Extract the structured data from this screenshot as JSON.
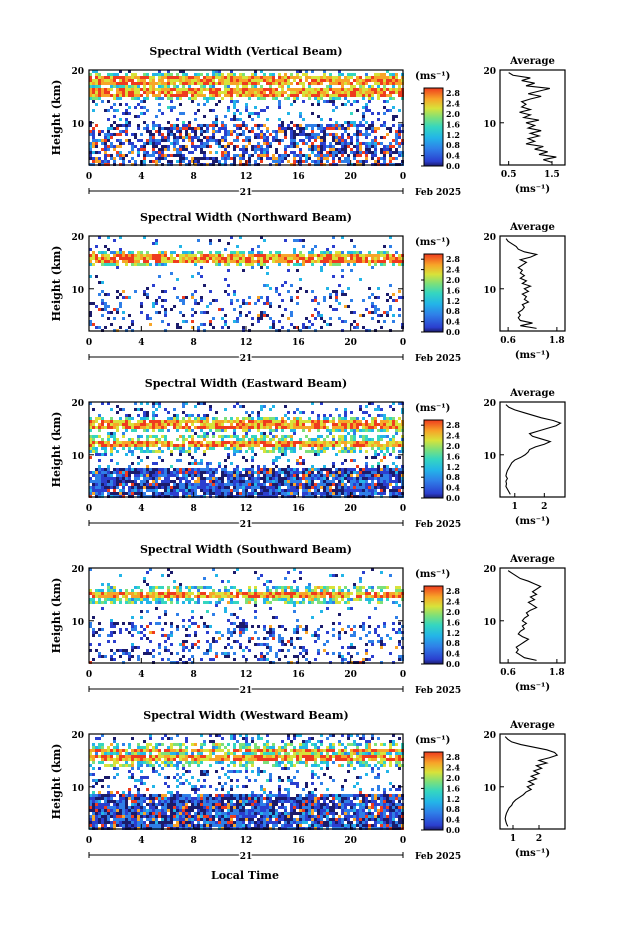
{
  "chart_data": {
    "type": "heatmap",
    "date_label": "Feb 2025",
    "day_label": "21",
    "xlabel": "Local Time",
    "ylabel": "Height (km)",
    "x_ticks": [
      "0",
      "4",
      "8",
      "12",
      "16",
      "20",
      "0"
    ],
    "xlim": [
      0,
      24
    ],
    "y_ticks": [
      "20",
      "10"
    ],
    "ylim": [
      2,
      20
    ],
    "colorbar": {
      "unit": "(ms⁻¹)",
      "ticks": [
        "2.8",
        "2.4",
        "2.0",
        "1.6",
        "1.2",
        "0.8",
        "0.4",
        "0.0"
      ],
      "range": [
        0.0,
        3.0
      ],
      "colors": [
        "#1b1b6b",
        "#2b3fcf",
        "#2f7fe8",
        "#23b5e8",
        "#35d6c0",
        "#7de07a",
        "#d8e23a",
        "#f7a528",
        "#ef3b1e"
      ]
    },
    "panels": [
      {
        "title": "Spectral Width (Vertical Beam)",
        "average": {
          "title": "Average",
          "xlabel": "(ms⁻¹)",
          "x_ticks": [
            "0.5",
            "1.5"
          ],
          "xlim": [
            0.3,
            1.8
          ],
          "profile": [
            [
              2.5,
              1.5
            ],
            [
              3,
              1.3
            ],
            [
              3.5,
              1.6
            ],
            [
              4,
              1.2
            ],
            [
              4.5,
              1.4
            ],
            [
              5,
              1.1
            ],
            [
              5.5,
              1.3
            ],
            [
              6,
              0.9
            ],
            [
              6.5,
              1.1
            ],
            [
              7,
              0.95
            ],
            [
              7.5,
              1.2
            ],
            [
              8,
              1.0
            ],
            [
              8.5,
              1.25
            ],
            [
              9,
              0.95
            ],
            [
              9.5,
              1.1
            ],
            [
              10,
              0.9
            ],
            [
              10.5,
              1.2
            ],
            [
              11,
              0.85
            ],
            [
              11.5,
              1.0
            ],
            [
              12,
              0.75
            ],
            [
              12.5,
              1.0
            ],
            [
              13,
              0.8
            ],
            [
              13.5,
              0.9
            ],
            [
              14,
              0.8
            ],
            [
              14.5,
              1.0
            ],
            [
              15,
              1.25
            ],
            [
              15.5,
              0.95
            ],
            [
              16,
              1.2
            ],
            [
              16.5,
              1.45
            ],
            [
              17,
              0.9
            ],
            [
              17.5,
              1.1
            ],
            [
              18,
              0.8
            ],
            [
              18.5,
              1.0
            ],
            [
              19,
              0.6
            ],
            [
              19.5,
              0.5
            ]
          ]
        }
      },
      {
        "title": "Spectral Width (Northward Beam)",
        "average": {
          "title": "Average",
          "xlabel": "(ms⁻¹)",
          "x_ticks": [
            "0.6",
            "1.8"
          ],
          "xlim": [
            0.4,
            2.0
          ],
          "profile": [
            [
              2.5,
              1.3
            ],
            [
              3,
              0.9
            ],
            [
              3.5,
              1.2
            ],
            [
              4,
              0.9
            ],
            [
              4.5,
              0.85
            ],
            [
              5,
              0.9
            ],
            [
              5.5,
              0.85
            ],
            [
              6,
              0.95
            ],
            [
              6.5,
              1.0
            ],
            [
              7,
              0.95
            ],
            [
              7.5,
              1.1
            ],
            [
              8,
              1.0
            ],
            [
              8.5,
              1.05
            ],
            [
              9,
              0.95
            ],
            [
              9.5,
              1.1
            ],
            [
              10,
              1.0
            ],
            [
              10.5,
              1.15
            ],
            [
              11,
              0.95
            ],
            [
              11.5,
              1.05
            ],
            [
              12,
              0.9
            ],
            [
              12.5,
              1.0
            ],
            [
              13,
              0.9
            ],
            [
              13.5,
              0.95
            ],
            [
              14,
              0.85
            ],
            [
              14.5,
              0.95
            ],
            [
              15,
              1.05
            ],
            [
              15.5,
              0.9
            ],
            [
              16,
              1.15
            ],
            [
              16.5,
              1.3
            ],
            [
              17,
              1.0
            ],
            [
              17.5,
              0.85
            ],
            [
              18,
              0.8
            ],
            [
              18.5,
              0.7
            ],
            [
              19,
              0.6
            ],
            [
              19.5,
              0.55
            ]
          ]
        }
      },
      {
        "title": "Spectral Width (Eastward Beam)",
        "average": {
          "title": "Average",
          "xlabel": "(ms⁻¹)",
          "x_ticks": [
            "1",
            "2"
          ],
          "xlim": [
            0.5,
            2.7
          ],
          "profile": [
            [
              2.5,
              0.85
            ],
            [
              3,
              0.8
            ],
            [
              3.5,
              0.75
            ],
            [
              4,
              0.7
            ],
            [
              4.5,
              0.72
            ],
            [
              5,
              0.7
            ],
            [
              5.5,
              0.75
            ],
            [
              6,
              0.7
            ],
            [
              6.5,
              0.72
            ],
            [
              7,
              0.75
            ],
            [
              7.5,
              0.8
            ],
            [
              8,
              0.85
            ],
            [
              8.5,
              0.9
            ],
            [
              9,
              1.0
            ],
            [
              9.5,
              1.2
            ],
            [
              10,
              1.35
            ],
            [
              10.5,
              1.45
            ],
            [
              11,
              1.5
            ],
            [
              11.5,
              1.7
            ],
            [
              12,
              2.0
            ],
            [
              12.5,
              2.2
            ],
            [
              13,
              1.9
            ],
            [
              13.5,
              1.6
            ],
            [
              14,
              1.5
            ],
            [
              14.5,
              1.8
            ],
            [
              15,
              2.1
            ],
            [
              15.5,
              2.4
            ],
            [
              16,
              2.55
            ],
            [
              16.5,
              2.3
            ],
            [
              17,
              1.9
            ],
            [
              17.5,
              1.6
            ],
            [
              18,
              1.3
            ],
            [
              18.5,
              1.0
            ],
            [
              19,
              0.8
            ],
            [
              19.5,
              0.7
            ]
          ]
        }
      },
      {
        "title": "Spectral Width (Southward Beam)",
        "average": {
          "title": "Average",
          "xlabel": "(ms⁻¹)",
          "x_ticks": [
            "0.6",
            "1.8"
          ],
          "xlim": [
            0.4,
            2.0
          ],
          "profile": [
            [
              2.5,
              1.3
            ],
            [
              3,
              1.0
            ],
            [
              3.5,
              0.9
            ],
            [
              4,
              0.8
            ],
            [
              4.5,
              0.85
            ],
            [
              5,
              0.8
            ],
            [
              5.5,
              0.9
            ],
            [
              6,
              1.0
            ],
            [
              6.5,
              1.1
            ],
            [
              7,
              0.95
            ],
            [
              7.5,
              0.85
            ],
            [
              8,
              0.9
            ],
            [
              8.5,
              1.0
            ],
            [
              9,
              0.95
            ],
            [
              9.5,
              1.05
            ],
            [
              10,
              0.95
            ],
            [
              10.5,
              1.0
            ],
            [
              11,
              1.1
            ],
            [
              11.5,
              1.05
            ],
            [
              12,
              1.15
            ],
            [
              12.5,
              1.3
            ],
            [
              13,
              1.2
            ],
            [
              13.5,
              1.1
            ],
            [
              14,
              1.25
            ],
            [
              14.5,
              1.15
            ],
            [
              15,
              1.3
            ],
            [
              15.5,
              1.2
            ],
            [
              16,
              1.3
            ],
            [
              16.5,
              1.4
            ],
            [
              17,
              1.25
            ],
            [
              17.5,
              1.1
            ],
            [
              18,
              0.9
            ],
            [
              18.5,
              0.8
            ],
            [
              19,
              0.7
            ],
            [
              19.5,
              0.6
            ]
          ]
        }
      },
      {
        "title": "Spectral Width (Westward Beam)",
        "average": {
          "title": "Average",
          "xlabel": "(ms⁻¹)",
          "x_ticks": [
            "1",
            "2"
          ],
          "xlim": [
            0.5,
            3.0
          ],
          "profile": [
            [
              2.5,
              0.8
            ],
            [
              3,
              0.75
            ],
            [
              3.5,
              0.72
            ],
            [
              4,
              0.7
            ],
            [
              4.5,
              0.72
            ],
            [
              5,
              0.75
            ],
            [
              5.5,
              0.8
            ],
            [
              6,
              0.85
            ],
            [
              6.5,
              0.95
            ],
            [
              7,
              1.0
            ],
            [
              7.5,
              1.1
            ],
            [
              8,
              1.25
            ],
            [
              8.5,
              1.4
            ],
            [
              9,
              1.5
            ],
            [
              9.5,
              1.7
            ],
            [
              10,
              1.55
            ],
            [
              10.5,
              1.8
            ],
            [
              11,
              1.6
            ],
            [
              11.5,
              1.9
            ],
            [
              12,
              1.7
            ],
            [
              12.5,
              2.0
            ],
            [
              13,
              1.8
            ],
            [
              13.5,
              2.1
            ],
            [
              14,
              1.9
            ],
            [
              14.5,
              2.3
            ],
            [
              15,
              2.0
            ],
            [
              15.5,
              2.4
            ],
            [
              16,
              2.7
            ],
            [
              16.5,
              2.6
            ],
            [
              17,
              2.3
            ],
            [
              17.5,
              1.8
            ],
            [
              18,
              1.3
            ],
            [
              18.5,
              0.95
            ],
            [
              19,
              0.8
            ],
            [
              19.5,
              0.7
            ]
          ]
        }
      }
    ]
  }
}
